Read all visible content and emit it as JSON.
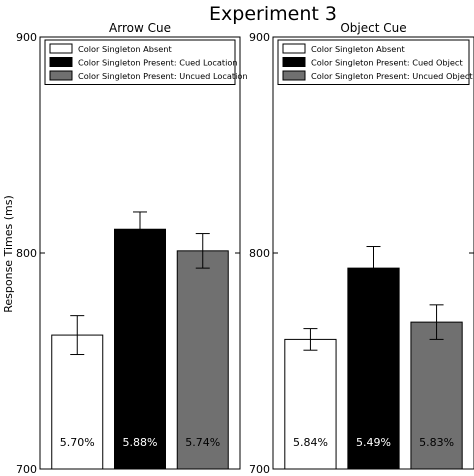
{
  "title": "Experiment 3",
  "ylabel": "Response Times (ms)",
  "chart_data": [
    {
      "type": "bar",
      "title": "Arrow Cue",
      "categories": [
        "Color Singleton Absent",
        "Color Singleton Present: Cued Location",
        "Color Singleton Present: Uncued Location"
      ],
      "values": [
        762,
        811,
        801
      ],
      "errors": [
        9,
        8,
        8
      ],
      "bar_labels": [
        "5.70%",
        "5.88%",
        "5.74%"
      ],
      "colors": [
        "#ffffff",
        "#000000",
        "#707070"
      ],
      "label_colors": [
        "#000000",
        "#ffffff",
        "#000000"
      ],
      "ylim": [
        700,
        900
      ],
      "yticks": [
        700,
        800,
        900
      ],
      "legend": "top"
    },
    {
      "type": "bar",
      "title": "Object Cue",
      "categories": [
        "Color Singleton Absent",
        "Color Singleton Present: Cued Object",
        "Color Singleton Present: Uncued Object"
      ],
      "values": [
        760,
        793,
        768
      ],
      "errors": [
        5,
        10,
        8
      ],
      "bar_labels": [
        "5.84%",
        "5.49%",
        "5.83%"
      ],
      "colors": [
        "#ffffff",
        "#000000",
        "#707070"
      ],
      "label_colors": [
        "#000000",
        "#ffffff",
        "#000000"
      ],
      "ylim": [
        700,
        900
      ],
      "yticks": [
        700,
        800,
        900
      ],
      "legend": "top"
    }
  ]
}
